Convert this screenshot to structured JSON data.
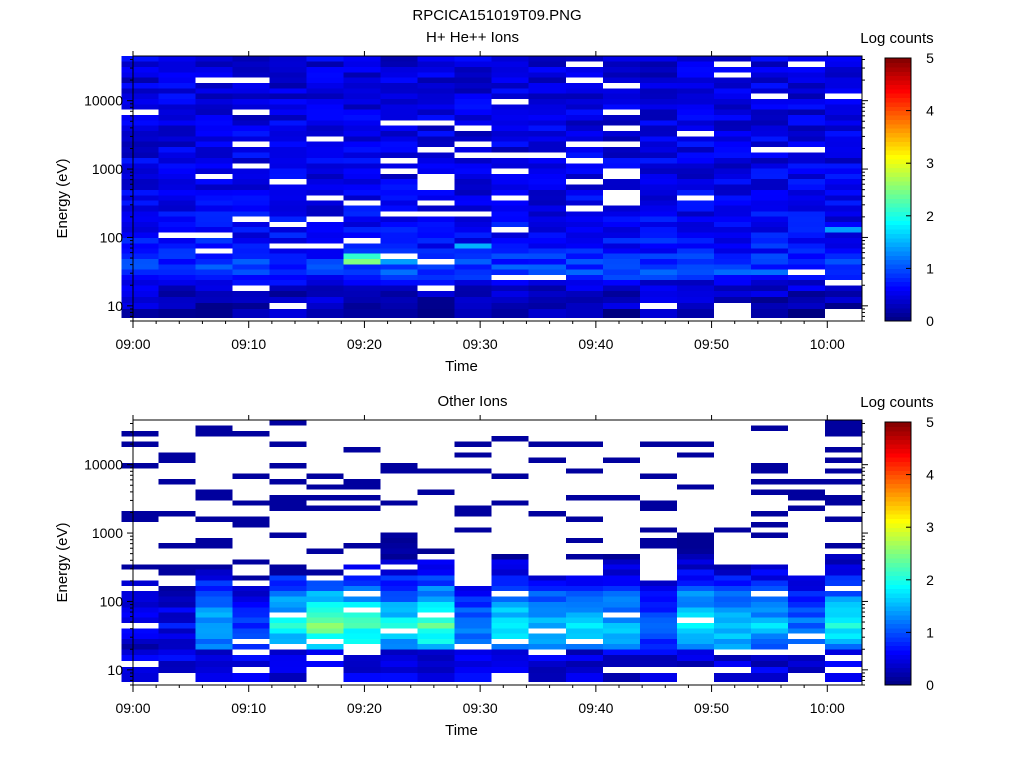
{
  "figure_title": "RPCICA151019T09.PNG",
  "chart_data": [
    {
      "type": "heatmap",
      "title": "H+ He++ Ions",
      "xlabel": "Time",
      "ylabel": "Energy (eV)",
      "y_scale": "log",
      "ylim": [
        6,
        45000
      ],
      "x_ticks": [
        "09:00",
        "09:10",
        "09:20",
        "09:30",
        "09:40",
        "09:50",
        "10:00"
      ],
      "y_ticks": [
        "10",
        "100",
        "1000",
        "10000"
      ],
      "x_range_minutes": [
        0,
        63
      ],
      "colorbar": {
        "label": "Log counts",
        "range": [
          0,
          5
        ],
        "ticks": [
          "0",
          "1",
          "2",
          "3",
          "4",
          "5"
        ]
      },
      "time_columns_minutes": [
        0.6,
        3.8,
        7.0,
        10.2,
        13.4,
        16.6,
        19.8,
        23.0,
        26.2,
        29.4,
        32.6,
        35.8,
        39.0,
        42.2,
        45.4,
        48.6,
        51.8,
        55.0,
        58.2,
        61.4
      ],
      "energy_rows_ev": [
        8,
        10,
        12,
        15,
        18,
        22,
        26,
        31,
        37,
        44,
        53,
        63,
        75,
        90,
        108,
        130,
        155,
        185,
        220,
        265,
        320,
        380,
        450,
        540,
        650,
        780,
        930,
        1100,
        1330,
        1600,
        1900,
        2300,
        2750,
        3300,
        3950,
        4700,
        5650,
        6750,
        8100,
        9700,
        11600,
        13900,
        16600,
        19900,
        23800,
        28500,
        34000,
        40700
      ],
      "profile_low": [
        [
          8,
          0.25
        ],
        [
          15,
          0.35
        ],
        [
          22,
          0.55
        ],
        [
          30,
          0.95
        ],
        [
          45,
          0.85
        ],
        [
          70,
          0.7
        ],
        [
          120,
          0.6
        ],
        [
          300,
          0.55
        ],
        [
          2000,
          0.5
        ],
        [
          40000,
          0.45
        ]
      ],
      "empty_fraction": 0.08,
      "features": [
        {
          "time_min": 19.8,
          "energy_ev": 44,
          "value": 2.5
        },
        {
          "time_min": 19.8,
          "energy_ev": 53,
          "value": 2.1
        },
        {
          "time_min": 23.0,
          "energy_ev": 44,
          "value": 1.4
        },
        {
          "time_min": 29.4,
          "energy_ev": 75,
          "value": 1.5
        },
        {
          "time_min": 61.4,
          "energy_ev": 130,
          "value": 1.4
        }
      ]
    },
    {
      "type": "heatmap",
      "title": "Other Ions",
      "xlabel": "Time",
      "ylabel": "Energy (eV)",
      "y_scale": "log",
      "ylim": [
        6,
        45000
      ],
      "x_ticks": [
        "09:00",
        "09:10",
        "09:20",
        "09:30",
        "09:40",
        "09:50",
        "10:00"
      ],
      "y_ticks": [
        "10",
        "100",
        "1000",
        "10000"
      ],
      "x_range_minutes": [
        0,
        63
      ],
      "colorbar": {
        "label": "Log counts",
        "range": [
          0,
          5
        ],
        "ticks": [
          "0",
          "1",
          "2",
          "3",
          "4",
          "5"
        ]
      },
      "time_columns_minutes": [
        0.6,
        3.8,
        7.0,
        10.2,
        13.4,
        16.6,
        19.8,
        23.0,
        26.2,
        29.4,
        32.6,
        35.8,
        39.0,
        42.2,
        45.4,
        48.6,
        51.8,
        55.0,
        58.2,
        61.4
      ],
      "energy_rows_ev": [
        8,
        10,
        12,
        15,
        18,
        22,
        26,
        31,
        37,
        44,
        53,
        63,
        75,
        90,
        108,
        130,
        155,
        185,
        220,
        265,
        320,
        380,
        450,
        540,
        650,
        780,
        930,
        1100,
        1330,
        1600,
        1900,
        2300,
        2750,
        3300,
        3950,
        4700,
        5650,
        6750,
        8100,
        9700,
        11600,
        13900,
        16600,
        19900,
        23800,
        28500,
        34000,
        40700
      ],
      "column_intensity": [
        0.5,
        0.6,
        1.6,
        0.9,
        1.9,
        2.4,
        2.2,
        1.9,
        2.2,
        1.3,
        1.9,
        1.6,
        1.8,
        1.6,
        1.1,
        2.0,
        1.8,
        1.6,
        1.2,
        1.9
      ],
      "column_top_ev": [
        200,
        130,
        300,
        180,
        250,
        210,
        350,
        850,
        600,
        180,
        500,
        250,
        260,
        470,
        210,
        950,
        350,
        330,
        240,
        460
      ],
      "sparse_lines_per_column": 4
    }
  ]
}
